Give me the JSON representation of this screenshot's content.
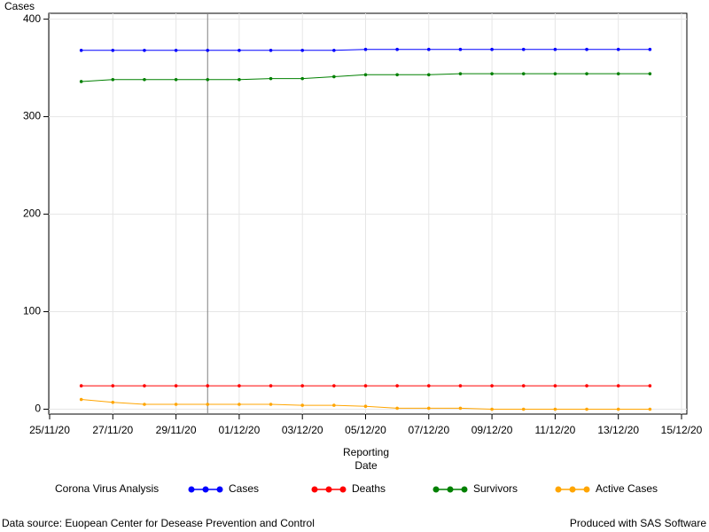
{
  "chart_data": {
    "type": "line",
    "ylabel": "Cases",
    "xlabel": [
      "Reporting",
      "Date"
    ],
    "x": [
      "26/11/20",
      "27/11/20",
      "28/11/20",
      "29/11/20",
      "30/11/20",
      "01/12/20",
      "02/12/20",
      "03/12/20",
      "04/12/20",
      "05/12/20",
      "06/12/20",
      "07/12/20",
      "08/12/20",
      "09/12/20",
      "10/12/20",
      "11/12/20",
      "12/12/20",
      "13/12/20",
      "14/12/20"
    ],
    "series": [
      {
        "name": "Cases",
        "color": "#0000ff",
        "values": [
          368,
          368,
          368,
          368,
          368,
          368,
          368,
          368,
          368,
          369,
          369,
          369,
          369,
          369,
          369,
          369,
          369,
          369,
          369
        ]
      },
      {
        "name": "Deaths",
        "color": "#ff0000",
        "values": [
          24,
          24,
          24,
          24,
          24,
          24,
          24,
          24,
          24,
          24,
          24,
          24,
          24,
          24,
          24,
          24,
          24,
          24,
          24
        ]
      },
      {
        "name": "Survivors",
        "color": "#008000",
        "values": [
          336,
          338,
          338,
          338,
          338,
          338,
          339,
          339,
          341,
          343,
          343,
          343,
          344,
          344,
          344,
          344,
          344,
          344,
          344
        ]
      },
      {
        "name": "Active Cases",
        "color": "#ffa500",
        "values": [
          10,
          7,
          5,
          5,
          5,
          5,
          5,
          4,
          4,
          3,
          1,
          1,
          1,
          0,
          0,
          0,
          0,
          0,
          0
        ]
      }
    ],
    "xlim": [
      "25/11/20",
      "15/12/20"
    ],
    "xticks": [
      "25/11/20",
      "27/11/20",
      "29/11/20",
      "01/12/20",
      "03/12/20",
      "05/12/20",
      "07/12/20",
      "09/12/20",
      "11/12/20",
      "13/12/20",
      "15/12/20"
    ],
    "ylim": [
      -5,
      406
    ],
    "yticks": [
      0,
      100,
      200,
      300,
      400
    ],
    "grid": true,
    "reference_line_x": "30/11/20",
    "legend_title": "Corona Virus Analysis",
    "footnote_left": "Data source: Euopean Center for Desease Prevention and Control",
    "footnote_right": "Produced with SAS Software"
  }
}
